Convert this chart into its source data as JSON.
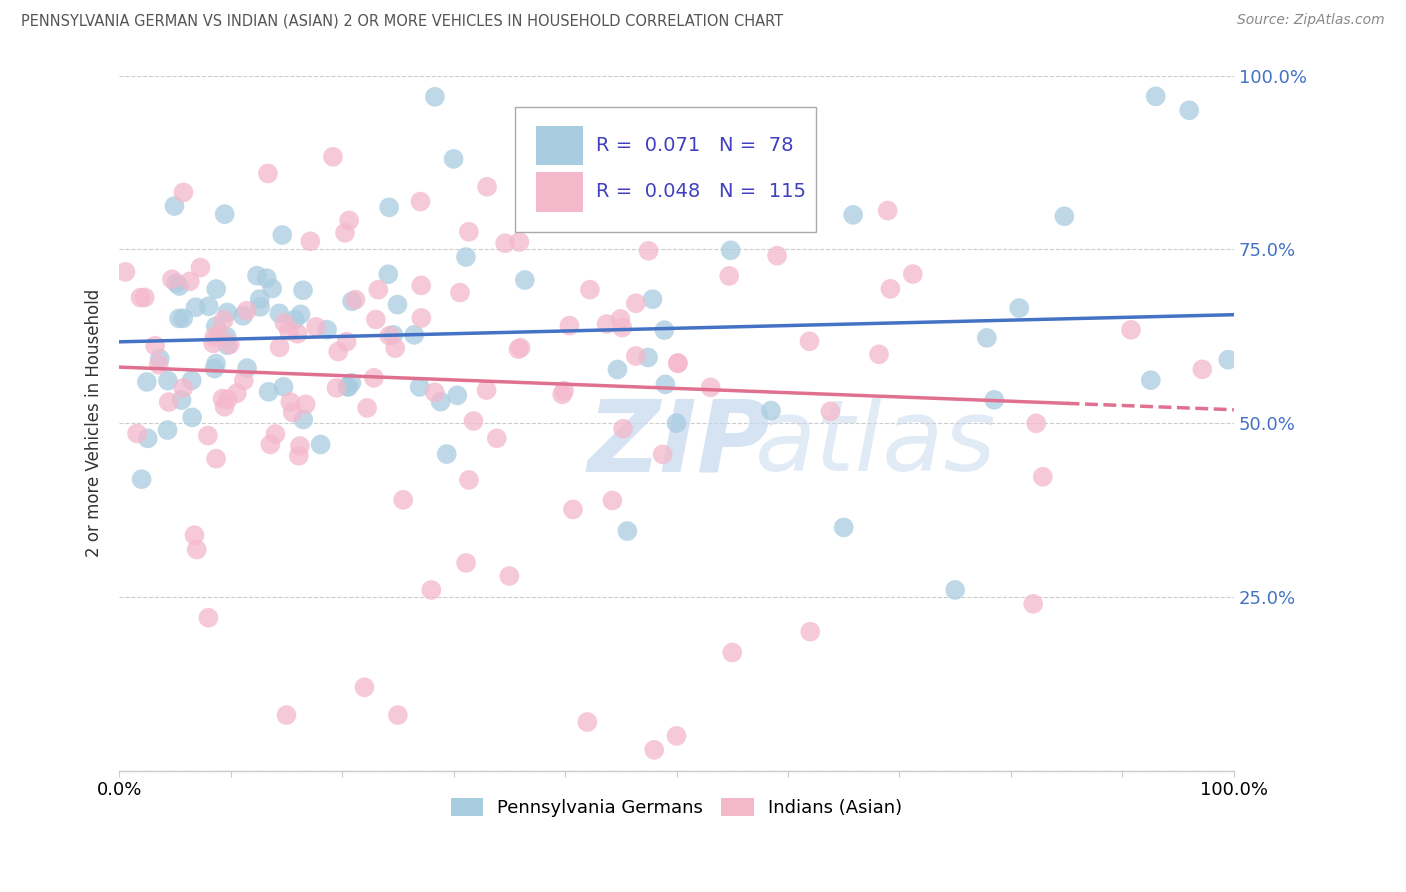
{
  "title": "PENNSYLVANIA GERMAN VS INDIAN (ASIAN) 2 OR MORE VEHICLES IN HOUSEHOLD CORRELATION CHART",
  "source": "Source: ZipAtlas.com",
  "ylabel": "2 or more Vehicles in Household",
  "xlim": [
    0,
    1
  ],
  "ylim": [
    0,
    1
  ],
  "ytick_vals": [
    0.0,
    0.25,
    0.5,
    0.75,
    1.0
  ],
  "ytick_labels": [
    "",
    "25.0%",
    "50.0%",
    "75.0%",
    "100.0%"
  ],
  "blue_R": "0.071",
  "blue_N": "78",
  "pink_R": "0.048",
  "pink_N": "115",
  "blue_color": "#a8cce0",
  "pink_color": "#f4b8cb",
  "blue_line_color": "#4472c4",
  "pink_line_color": "#e07090",
  "watermark_text": "ZIP",
  "watermark_text2": "atlas",
  "legend_label_blue": "Pennsylvania Germans",
  "legend_label_pink": "Indians (Asian)",
  "legend_blue_sq": "#a8cce0",
  "legend_pink_sq": "#f4b8cb",
  "legend_text_color": "#4040c0",
  "title_color": "#555555",
  "source_color": "#888888",
  "ylabel_color": "#333333",
  "right_tick_color": "#4472c4",
  "grid_color": "#cccccc",
  "spine_color": "#cccccc"
}
